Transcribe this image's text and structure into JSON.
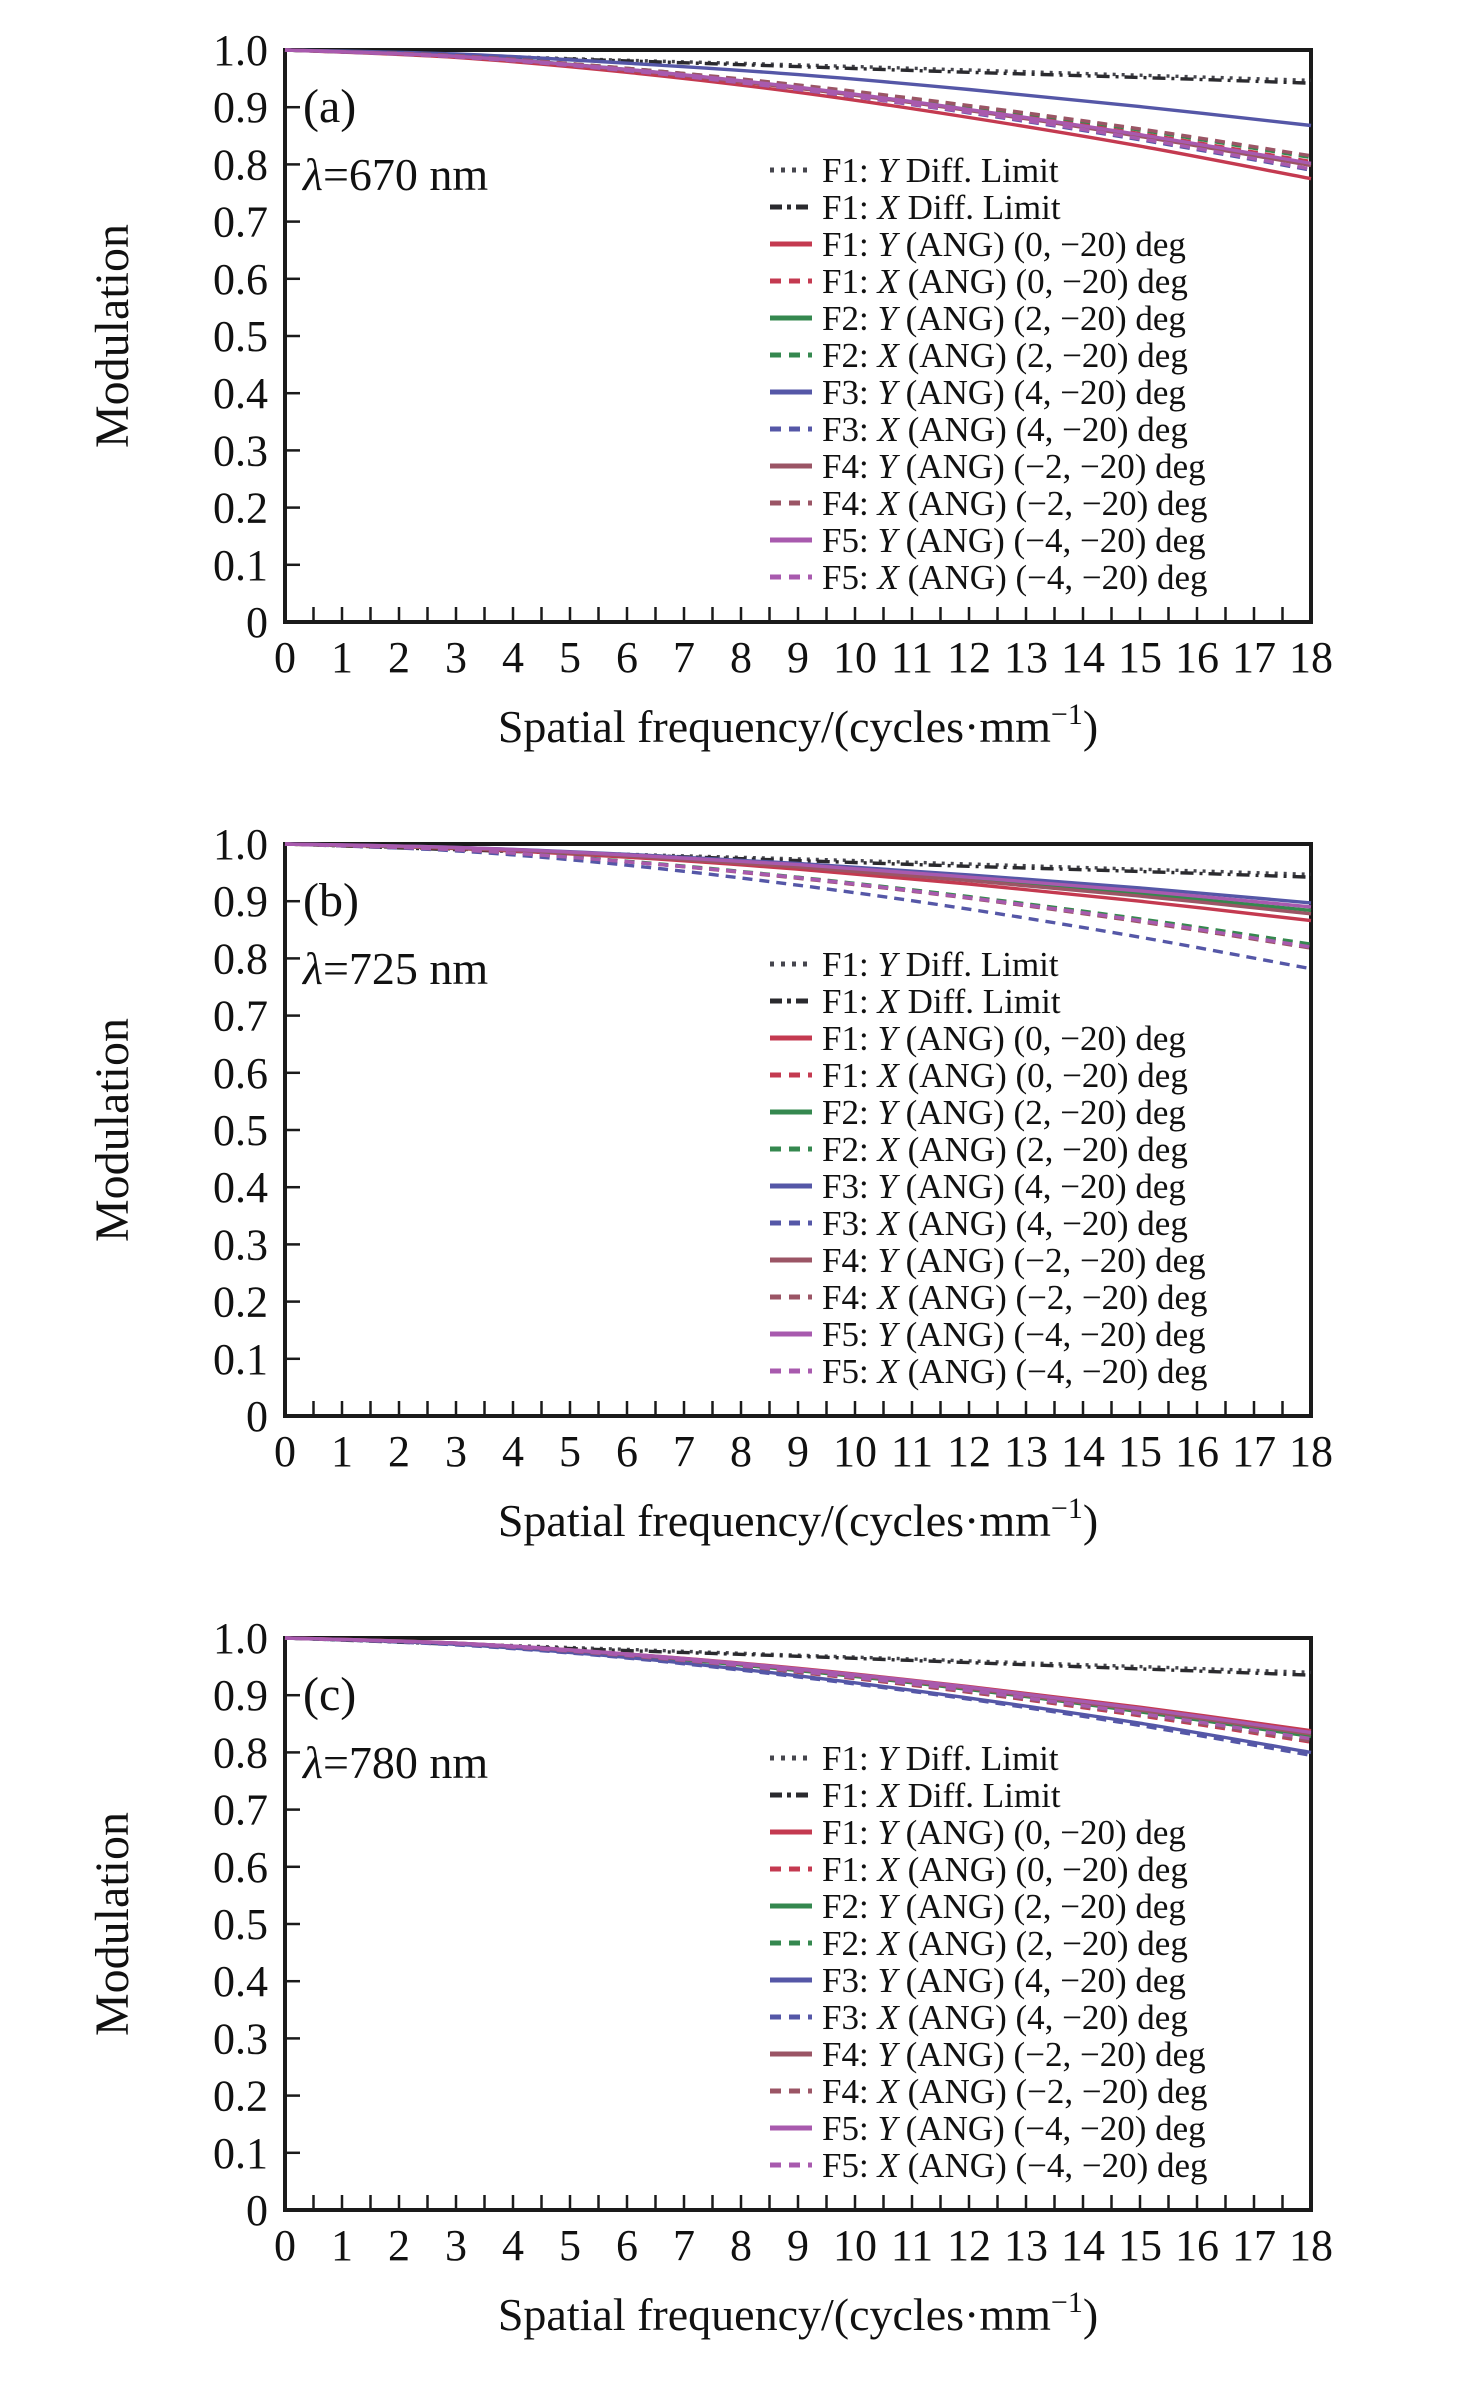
{
  "page": {
    "background": "#ffffff",
    "text_color": "#111111",
    "frame_color": "#1a1a1a"
  },
  "chart_data": [
    {
      "type": "line",
      "panel_label": "(a)",
      "annotation_lambda": "λ",
      "annotation_rest": "=670 nm",
      "xlabel": "Spatial frequency/(cycles·mm⁻¹)",
      "xlabel_main": "Spatial frequency/(cycles·mm",
      "xlabel_sup": "−1",
      "xlabel_close": ")",
      "ylabel": "Modulation",
      "xlim": [
        0,
        18
      ],
      "ylim": [
        0,
        1.0
      ],
      "grid": false,
      "legend_position": "right-center",
      "xticks": [
        0,
        1,
        2,
        3,
        4,
        5,
        6,
        7,
        8,
        9,
        10,
        11,
        12,
        13,
        14,
        15,
        16,
        17,
        18
      ],
      "yticks": [
        "1.0",
        "0.9",
        "0.8",
        "0.7",
        "0.6",
        "0.5",
        "0.4",
        "0.3",
        "0.2",
        "0.1",
        "0"
      ],
      "x": [
        0,
        3,
        6,
        9,
        12,
        15,
        18
      ],
      "series": [
        {
          "f": "F1:",
          "axis": "Y",
          "rest": "Diff. Limit",
          "color": "#45454d",
          "style": "dot",
          "values": [
            1,
            0.991,
            0.982,
            0.974,
            0.965,
            0.956,
            0.947
          ]
        },
        {
          "f": "F1:",
          "axis": "X",
          "rest": "Diff. Limit",
          "color": "#2a2a2e",
          "style": "dashdot",
          "values": [
            1,
            0.99,
            0.981,
            0.971,
            0.961,
            0.952,
            0.942
          ]
        },
        {
          "f": "F1:",
          "axis": "Y",
          "rest": "(ANG) (0, −20) deg",
          "color": "#c43a50",
          "style": "solid",
          "values": [
            1,
            0.987,
            0.961,
            0.926,
            0.882,
            0.832,
            0.775
          ]
        },
        {
          "f": "F1:",
          "axis": "X",
          "rest": "(ANG) (0, −20) deg",
          "color": "#c43a50",
          "style": "dash",
          "values": [
            1,
            0.989,
            0.967,
            0.936,
            0.898,
            0.854,
            0.805
          ]
        },
        {
          "f": "F2:",
          "axis": "Y",
          "rest": "(ANG) (2, −20) deg",
          "color": "#35884f",
          "style": "solid",
          "values": [
            1,
            0.989,
            0.966,
            0.934,
            0.895,
            0.851,
            0.8
          ]
        },
        {
          "f": "F2:",
          "axis": "X",
          "rest": "(ANG) (2, −20) deg",
          "color": "#35884f",
          "style": "dash",
          "values": [
            1,
            0.989,
            0.968,
            0.938,
            0.902,
            0.86,
            0.812
          ]
        },
        {
          "f": "F3:",
          "axis": "Y",
          "rest": "(ANG) (4, −20) deg",
          "color": "#5557a7",
          "style": "solid",
          "values": [
            1,
            0.993,
            0.977,
            0.957,
            0.931,
            0.901,
            0.868
          ]
        },
        {
          "f": "F3:",
          "axis": "X",
          "rest": "(ANG) (4, −20) deg",
          "color": "#5557a7",
          "style": "dash",
          "values": [
            1,
            0.988,
            0.964,
            0.931,
            0.89,
            0.843,
            0.79
          ]
        },
        {
          "f": "F4:",
          "axis": "Y",
          "rest": "(ANG) (−2, −20) deg",
          "color": "#9b5565",
          "style": "solid",
          "values": [
            1,
            0.989,
            0.965,
            0.933,
            0.894,
            0.849,
            0.798
          ]
        },
        {
          "f": "F4:",
          "axis": "X",
          "rest": "(ANG) (−2, −20) deg",
          "color": "#9b5565",
          "style": "dash",
          "values": [
            1,
            0.99,
            0.968,
            0.939,
            0.903,
            0.862,
            0.815
          ]
        },
        {
          "f": "F5:",
          "axis": "Y",
          "rest": "(ANG) (−4, −20) deg",
          "color": "#a85aae",
          "style": "solid",
          "values": [
            1,
            0.989,
            0.966,
            0.935,
            0.896,
            0.852,
            0.802
          ]
        },
        {
          "f": "F5:",
          "axis": "X",
          "rest": "(ANG) (−4, −20) deg",
          "color": "#a85aae",
          "style": "dash",
          "values": [
            1,
            0.988,
            0.964,
            0.931,
            0.891,
            0.845,
            0.792
          ]
        }
      ]
    },
    {
      "type": "line",
      "panel_label": "(b)",
      "annotation_lambda": "λ",
      "annotation_rest": "=725 nm",
      "xlabel": "Spatial frequency/(cycles·mm⁻¹)",
      "xlabel_main": "Spatial frequency/(cycles·mm",
      "xlabel_sup": "−1",
      "xlabel_close": ")",
      "ylabel": "Modulation",
      "xlim": [
        0,
        18
      ],
      "ylim": [
        0,
        1.0
      ],
      "grid": false,
      "legend_position": "right-center",
      "xticks": [
        0,
        1,
        2,
        3,
        4,
        5,
        6,
        7,
        8,
        9,
        10,
        11,
        12,
        13,
        14,
        15,
        16,
        17,
        18
      ],
      "yticks": [
        "1.0",
        "0.9",
        "0.8",
        "0.7",
        "0.6",
        "0.5",
        "0.4",
        "0.3",
        "0.2",
        "0.1",
        "0"
      ],
      "x": [
        0,
        3,
        6,
        9,
        12,
        15,
        18
      ],
      "series": [
        {
          "f": "F1:",
          "axis": "Y",
          "rest": "Diff. Limit",
          "color": "#45454d",
          "style": "dot",
          "values": [
            1,
            0.991,
            0.982,
            0.974,
            0.965,
            0.956,
            0.947
          ]
        },
        {
          "f": "F1:",
          "axis": "X",
          "rest": "Diff. Limit",
          "color": "#2a2a2e",
          "style": "dashdot",
          "values": [
            1,
            0.99,
            0.981,
            0.971,
            0.961,
            0.952,
            0.942
          ]
        },
        {
          "f": "F1:",
          "axis": "Y",
          "rest": "(ANG) (0, −20) deg",
          "color": "#c43a50",
          "style": "solid",
          "values": [
            1,
            0.992,
            0.977,
            0.956,
            0.93,
            0.9,
            0.866
          ]
        },
        {
          "f": "F1:",
          "axis": "X",
          "rest": "(ANG) (0, −20) deg",
          "color": "#c43a50",
          "style": "dash",
          "values": [
            1,
            0.99,
            0.969,
            0.941,
            0.907,
            0.867,
            0.822
          ]
        },
        {
          "f": "F2:",
          "axis": "Y",
          "rest": "(ANG) (2, −20) deg",
          "color": "#35884f",
          "style": "solid",
          "values": [
            1,
            0.993,
            0.98,
            0.962,
            0.939,
            0.913,
            0.884
          ]
        },
        {
          "f": "F2:",
          "axis": "X",
          "rest": "(ANG) (2, −20) deg",
          "color": "#35884f",
          "style": "dash",
          "values": [
            1,
            0.99,
            0.97,
            0.942,
            0.908,
            0.869,
            0.825
          ]
        },
        {
          "f": "F3:",
          "axis": "Y",
          "rest": "(ANG) (4, −20) deg",
          "color": "#5557a7",
          "style": "solid",
          "values": [
            1,
            0.994,
            0.982,
            0.966,
            0.946,
            0.923,
            0.897
          ]
        },
        {
          "f": "F3:",
          "axis": "X",
          "rest": "(ANG) (4, −20) deg",
          "color": "#5557a7",
          "style": "dash",
          "values": [
            1,
            0.988,
            0.963,
            0.928,
            0.886,
            0.837,
            0.782
          ]
        },
        {
          "f": "F4:",
          "axis": "Y",
          "rest": "(ANG) (−2, −20) deg",
          "color": "#9b5565",
          "style": "solid",
          "values": [
            1,
            0.993,
            0.979,
            0.96,
            0.936,
            0.909,
            0.878
          ]
        },
        {
          "f": "F4:",
          "axis": "X",
          "rest": "(ANG) (−2, −20) deg",
          "color": "#9b5565",
          "style": "dash",
          "values": [
            1,
            0.99,
            0.969,
            0.94,
            0.905,
            0.864,
            0.818
          ]
        },
        {
          "f": "F5:",
          "axis": "Y",
          "rest": "(ANG) (−4, −20) deg",
          "color": "#a85aae",
          "style": "solid",
          "values": [
            1,
            0.994,
            0.981,
            0.964,
            0.942,
            0.918,
            0.89
          ]
        },
        {
          "f": "F5:",
          "axis": "X",
          "rest": "(ANG) (−4, −20) deg",
          "color": "#a85aae",
          "style": "dash",
          "values": [
            1,
            0.99,
            0.969,
            0.941,
            0.906,
            0.866,
            0.82
          ]
        }
      ]
    },
    {
      "type": "line",
      "panel_label": "(c)",
      "annotation_lambda": "λ",
      "annotation_rest": "=780 nm",
      "xlabel": "Spatial frequency/(cycles·mm⁻¹)",
      "xlabel_main": "Spatial frequency/(cycles·mm",
      "xlabel_sup": "−1",
      "xlabel_close": ")",
      "ylabel": "Modulation",
      "xlim": [
        0,
        18
      ],
      "ylim": [
        0,
        1.0
      ],
      "grid": false,
      "legend_position": "right-center",
      "xticks": [
        0,
        1,
        2,
        3,
        4,
        5,
        6,
        7,
        8,
        9,
        10,
        11,
        12,
        13,
        14,
        15,
        16,
        17,
        18
      ],
      "yticks": [
        "1.0",
        "0.9",
        "0.8",
        "0.7",
        "0.6",
        "0.5",
        "0.4",
        "0.3",
        "0.2",
        "0.1",
        "0"
      ],
      "x": [
        0,
        3,
        6,
        9,
        12,
        15,
        18
      ],
      "series": [
        {
          "f": "F1:",
          "axis": "Y",
          "rest": "Diff. Limit",
          "color": "#45454d",
          "style": "dot",
          "values": [
            1,
            0.99,
            0.98,
            0.97,
            0.96,
            0.95,
            0.94
          ]
        },
        {
          "f": "F1:",
          "axis": "X",
          "rest": "Diff. Limit",
          "color": "#2a2a2e",
          "style": "dashdot",
          "values": [
            1,
            0.989,
            0.978,
            0.968,
            0.957,
            0.946,
            0.935
          ]
        },
        {
          "f": "F1:",
          "axis": "Y",
          "rest": "(ANG) (0, −20) deg",
          "color": "#c43a50",
          "style": "solid",
          "values": [
            1,
            0.991,
            0.972,
            0.947,
            0.915,
            0.879,
            0.838
          ]
        },
        {
          "f": "F1:",
          "axis": "X",
          "rest": "(ANG) (0, −20) deg",
          "color": "#c43a50",
          "style": "dash",
          "values": [
            1,
            0.99,
            0.969,
            0.94,
            0.905,
            0.864,
            0.818
          ]
        },
        {
          "f": "F2:",
          "axis": "Y",
          "rest": "(ANG) (2, −20) deg",
          "color": "#35884f",
          "style": "solid",
          "values": [
            1,
            0.99,
            0.97,
            0.943,
            0.91,
            0.871,
            0.828
          ]
        },
        {
          "f": "F2:",
          "axis": "X",
          "rest": "(ANG) (2, −20) deg",
          "color": "#35884f",
          "style": "dash",
          "values": [
            1,
            0.99,
            0.969,
            0.941,
            0.907,
            0.867,
            0.822
          ]
        },
        {
          "f": "F3:",
          "axis": "Y",
          "rest": "(ANG) (4, −20) deg",
          "color": "#5557a7",
          "style": "solid",
          "values": [
            1,
            0.989,
            0.966,
            0.934,
            0.895,
            0.851,
            0.8
          ]
        },
        {
          "f": "F3:",
          "axis": "X",
          "rest": "(ANG) (4, −20) deg",
          "color": "#5557a7",
          "style": "dash",
          "values": [
            1,
            0.988,
            0.965,
            0.932,
            0.893,
            0.847,
            0.795
          ]
        },
        {
          "f": "F4:",
          "axis": "Y",
          "rest": "(ANG) (−2, −20) deg",
          "color": "#9b5565",
          "style": "solid",
          "values": [
            1,
            0.991,
            0.971,
            0.945,
            0.912,
            0.874,
            0.832
          ]
        },
        {
          "f": "F4:",
          "axis": "X",
          "rest": "(ANG) (−2, −20) deg",
          "color": "#9b5565",
          "style": "dash",
          "values": [
            1,
            0.99,
            0.969,
            0.941,
            0.906,
            0.866,
            0.82
          ]
        },
        {
          "f": "F5:",
          "axis": "Y",
          "rest": "(ANG) (−4, −20) deg",
          "color": "#a85aae",
          "style": "solid",
          "values": [
            1,
            0.991,
            0.972,
            0.946,
            0.914,
            0.877,
            0.835
          ]
        },
        {
          "f": "F5:",
          "axis": "X",
          "rest": "(ANG) (−4, −20) deg",
          "color": "#a85aae",
          "style": "dash",
          "values": [
            1,
            0.99,
            0.97,
            0.942,
            0.908,
            0.868,
            0.824
          ]
        }
      ]
    }
  ]
}
